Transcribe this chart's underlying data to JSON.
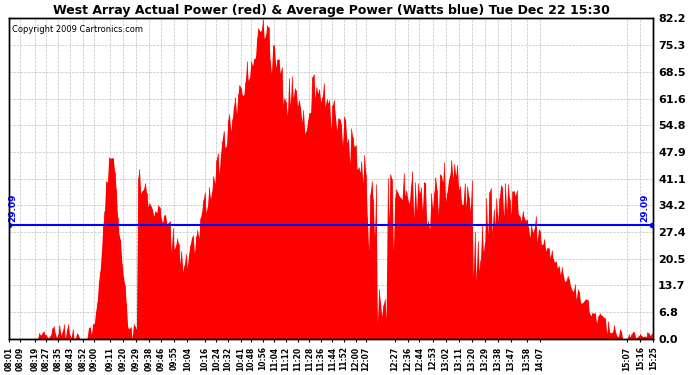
{
  "title": "West Array Actual Power (red) & Average Power (Watts blue) Tue Dec 22 15:30",
  "copyright": "Copyright 2009 Cartronics.com",
  "ylabel_right": [
    "82.2",
    "75.3",
    "68.5",
    "61.6",
    "54.8",
    "47.9",
    "41.1",
    "34.2",
    "27.4",
    "20.5",
    "13.7",
    "6.8",
    "0.0"
  ],
  "ymax": 82.2,
  "ymin": 0.0,
  "average_value": 29.09,
  "avg_label": "29.09",
  "background_color": "#ffffff",
  "bar_color": "#ff0000",
  "avg_line_color": "#0000ff",
  "grid_color": "#c0c0c0",
  "tick_labels": [
    "08:01",
    "08:09",
    "08:19",
    "08:27",
    "08:35",
    "08:43",
    "08:52",
    "09:00",
    "09:11",
    "09:20",
    "09:29",
    "09:38",
    "09:46",
    "09:55",
    "10:04",
    "10:16",
    "10:24",
    "10:32",
    "10:41",
    "10:48",
    "10:56",
    "11:04",
    "11:12",
    "11:20",
    "11:28",
    "11:36",
    "11:44",
    "11:52",
    "12:00",
    "12:07",
    "12:27",
    "12:36",
    "12:44",
    "12:53",
    "13:02",
    "13:11",
    "13:20",
    "13:29",
    "13:38",
    "13:47",
    "13:58",
    "14:07",
    "15:07",
    "15:16",
    "15:25"
  ],
  "figwidth": 6.9,
  "figheight": 3.75,
  "dpi": 100
}
